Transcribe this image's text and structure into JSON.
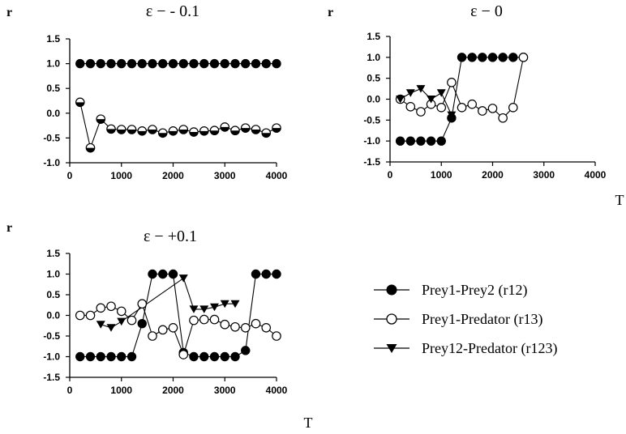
{
  "chart_data": [
    {
      "type": "line",
      "title": "ε − - 0.1",
      "ylabel": "r",
      "xlabel": "",
      "xlim": [
        0,
        4000
      ],
      "ylim": [
        -1.0,
        1.5
      ],
      "xticks": [
        "0",
        "1000",
        "2000",
        "3000",
        "4000"
      ],
      "yticks": [
        "1.5",
        "1.0",
        "0.5",
        "0.0",
        "-0.5",
        "-1.0"
      ],
      "series": [
        {
          "name": "Prey1-Prey2 (r12)",
          "marker": "filled-circle",
          "x": [
            200,
            400,
            600,
            800,
            1000,
            1200,
            1400,
            1600,
            1800,
            2000,
            2200,
            2400,
            2600,
            2800,
            3000,
            3200,
            3400,
            3600,
            3800,
            4000
          ],
          "y": [
            1,
            1,
            1,
            1,
            1,
            1,
            1,
            1,
            1,
            1,
            1,
            1,
            1,
            1,
            1,
            1,
            1,
            1,
            1,
            1
          ]
        },
        {
          "name": "Prey1-Predator (r13)",
          "marker": "half-filled-circle",
          "x": [
            200,
            400,
            600,
            800,
            1000,
            1200,
            1400,
            1600,
            1800,
            2000,
            2200,
            2400,
            2600,
            2800,
            3000,
            3200,
            3400,
            3600,
            3800,
            4000
          ],
          "y": [
            0.22,
            -0.7,
            -0.12,
            -0.32,
            -0.33,
            -0.33,
            -0.36,
            -0.33,
            -0.4,
            -0.36,
            -0.33,
            -0.38,
            -0.36,
            -0.35,
            -0.28,
            -0.35,
            -0.3,
            -0.33,
            -0.4,
            -0.3
          ]
        }
      ]
    },
    {
      "type": "line",
      "title": "ε − 0",
      "ylabel": "r",
      "xlabel": "T",
      "xlim": [
        0,
        4000
      ],
      "ylim": [
        -1.5,
        1.5
      ],
      "xticks": [
        "0",
        "1000",
        "2000",
        "3000",
        "4000"
      ],
      "yticks": [
        "1.5",
        "1.0",
        "0.5",
        "0.0",
        "-0.5",
        "-1.0",
        "-1.5"
      ],
      "series": [
        {
          "name": "Prey1-Prey2 (r12)",
          "marker": "filled-circle",
          "x": [
            200,
            400,
            600,
            800,
            1000,
            1200,
            1400,
            1600,
            1800,
            2000,
            2200,
            2400,
            2600
          ],
          "y": [
            -1,
            -1,
            -1,
            -1,
            -1,
            -0.45,
            1,
            1,
            1,
            1,
            1,
            1,
            1
          ]
        },
        {
          "name": "Prey1-Predator (r13)",
          "marker": "open-circle",
          "x": [
            200,
            400,
            600,
            800,
            1000,
            1200,
            1400,
            1600,
            1800,
            2000,
            2200,
            2400,
            2600
          ],
          "y": [
            0,
            -0.18,
            -0.3,
            -0.12,
            -0.2,
            0.4,
            -0.2,
            -0.12,
            -0.28,
            -0.22,
            -0.45,
            -0.2,
            1
          ]
        },
        {
          "name": "Prey12-Predator (r123)",
          "marker": "triangle-down",
          "x": [
            200,
            400,
            600,
            800,
            1000,
            1200
          ],
          "y": [
            0,
            0.15,
            0.25,
            0,
            0.15,
            -0.38
          ]
        }
      ]
    },
    {
      "type": "line",
      "title": "ε − +0.1",
      "ylabel": "r",
      "xlabel": "T",
      "xlim": [
        0,
        4000
      ],
      "ylim": [
        -1.5,
        1.5
      ],
      "xticks": [
        "0",
        "1000",
        "2000",
        "3000",
        "4000"
      ],
      "yticks": [
        "1.5",
        "1.0",
        "0.5",
        "0.0",
        "-0.5",
        "-1.0",
        "-1.5"
      ],
      "series": [
        {
          "name": "Prey1-Prey2 (r12)",
          "marker": "filled-circle",
          "x": [
            200,
            400,
            600,
            800,
            1000,
            1200,
            1400,
            1600,
            1800,
            2000,
            2200,
            2400,
            2600,
            2800,
            3000,
            3200,
            3400,
            3600,
            3800,
            4000
          ],
          "y": [
            -1,
            -1,
            -1,
            -1,
            -1,
            -1,
            -0.2,
            1,
            1,
            1,
            -0.9,
            -1,
            -1,
            -1,
            -1,
            -1,
            -0.85,
            1,
            1,
            1
          ]
        },
        {
          "name": "Prey1-Predator (r13)",
          "marker": "open-circle",
          "x": [
            200,
            400,
            600,
            800,
            1000,
            1200,
            1400,
            1600,
            1800,
            2000,
            2200,
            2400,
            2600,
            2800,
            3000,
            3200,
            3400,
            3600,
            3800,
            4000
          ],
          "y": [
            0,
            0,
            0.18,
            0.22,
            0.1,
            -0.12,
            0.28,
            -0.5,
            -0.35,
            -0.3,
            -0.95,
            -0.12,
            -0.1,
            -0.1,
            -0.22,
            -0.28,
            -0.3,
            -0.2,
            -0.3,
            -0.5
          ]
        },
        {
          "name": "Prey12-Predator (r123)",
          "marker": "triangle-down",
          "x": [
            600,
            800,
            1000,
            2200,
            2400,
            2600,
            2800,
            3000,
            3200
          ],
          "y": [
            -0.22,
            -0.3,
            -0.15,
            0.9,
            0.15,
            0.15,
            0.2,
            0.28,
            0.28
          ]
        }
      ]
    }
  ],
  "legend": {
    "items": [
      {
        "label": "Prey1-Prey2 (r12)",
        "marker": "filled-circle"
      },
      {
        "label": "Prey1-Predator (r13)",
        "marker": "open-circle"
      },
      {
        "label": "Prey12-Predator (r123)",
        "marker": "triangle-down"
      }
    ]
  }
}
